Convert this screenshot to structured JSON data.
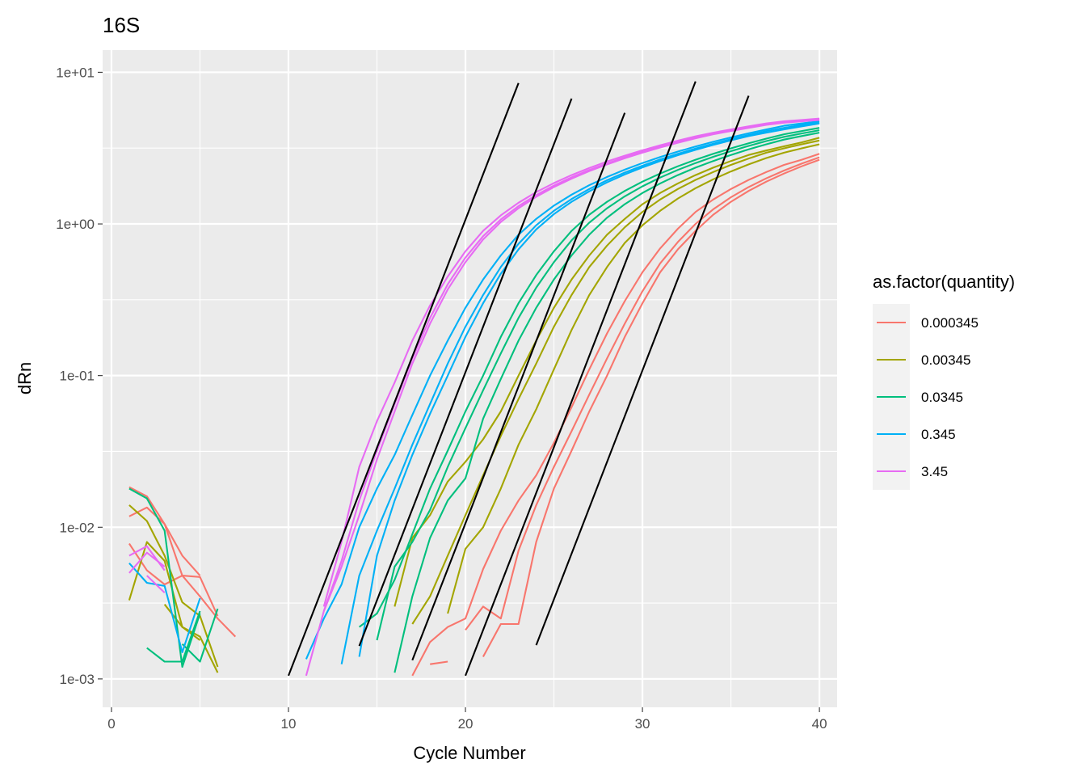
{
  "chart_data": {
    "type": "line",
    "title": "16S",
    "xlabel": "Cycle Number",
    "ylabel": "dRn",
    "xlim": [
      -0.5,
      41
    ],
    "ylim": [
      0.00065,
      14
    ],
    "yscale": "log",
    "xticks": [
      0,
      10,
      20,
      30,
      40
    ],
    "xtick_labels": [
      "0",
      "10",
      "20",
      "30",
      "40"
    ],
    "yticks": [
      0.001,
      0.01,
      0.1,
      1,
      10
    ],
    "ytick_labels": [
      "1e-03",
      "1e-02",
      "1e-01",
      "1e+00",
      "1e+01"
    ],
    "grid": true,
    "legend": {
      "title": "as.factor(quantity)",
      "position": "right",
      "entries": [
        {
          "label": "0.000345",
          "color": "#F8766D"
        },
        {
          "label": "0.00345",
          "color": "#A3A500"
        },
        {
          "label": "0.0345",
          "color": "#00BF7D"
        },
        {
          "label": "0.345",
          "color": "#00B0F6"
        },
        {
          "label": "3.45",
          "color": "#E76BF3"
        }
      ]
    },
    "series": [
      {
        "group": "0.000345",
        "color": "#F8766D",
        "x": [
          1,
          2,
          3,
          4,
          5
        ],
        "y": [
          0.0184,
          0.016,
          0.0105,
          0.0065,
          0.0048
        ]
      },
      {
        "group": "0.000345",
        "color": "#F8766D",
        "x": [
          1,
          2,
          3,
          4,
          5,
          6,
          7
        ],
        "y": [
          0.0118,
          0.0135,
          0.0105,
          0.0048,
          0.0035,
          0.0025,
          0.0019
        ]
      },
      {
        "group": "0.000345",
        "color": "#F8766D",
        "x": [
          1,
          2,
          3,
          4,
          5,
          6
        ],
        "y": [
          0.0078,
          0.0052,
          0.0042,
          0.0048,
          0.0047,
          0.0026
        ]
      },
      {
        "group": "0.000345",
        "color": "#F8766D",
        "x": [
          17,
          18,
          19,
          20,
          21,
          22,
          23,
          24,
          25,
          26,
          27,
          28,
          29,
          30,
          31,
          32,
          33,
          34,
          35,
          36,
          37,
          38,
          39,
          40
        ],
        "y": [
          0.00105,
          0.00175,
          0.0022,
          0.0025,
          0.0053,
          0.0095,
          0.015,
          0.022,
          0.036,
          0.062,
          0.11,
          0.19,
          0.31,
          0.48,
          0.69,
          0.93,
          1.2,
          1.45,
          1.7,
          1.95,
          2.2,
          2.45,
          2.65,
          2.9
        ]
      },
      {
        "group": "0.000345",
        "color": "#F8766D",
        "x": [
          20,
          21,
          22,
          23,
          24,
          25,
          26,
          27,
          28,
          29,
          30,
          31,
          32,
          33,
          34,
          35,
          36,
          37,
          38,
          39,
          40
        ],
        "y": [
          0.0021,
          0.003,
          0.0025,
          0.007,
          0.014,
          0.025,
          0.043,
          0.075,
          0.13,
          0.22,
          0.36,
          0.55,
          0.76,
          1.0,
          1.25,
          1.5,
          1.75,
          2.0,
          2.25,
          2.5,
          2.75
        ]
      },
      {
        "group": "0.000345",
        "color": "#F8766D",
        "x": [
          21,
          22,
          23,
          24,
          25,
          26,
          27,
          28,
          29,
          30,
          31,
          32,
          33,
          34,
          35,
          36,
          37,
          38,
          39,
          40
        ],
        "y": [
          0.0014,
          0.0023,
          0.0023,
          0.008,
          0.018,
          0.032,
          0.058,
          0.1,
          0.18,
          0.3,
          0.48,
          0.68,
          0.9,
          1.15,
          1.4,
          1.65,
          1.9,
          2.15,
          2.4,
          2.65
        ]
      },
      {
        "group": "0.000345",
        "color": "#F8766D",
        "x": [
          18,
          19
        ],
        "y": [
          0.00125,
          0.0013
        ]
      },
      {
        "group": "0.00345",
        "color": "#A3A500",
        "x": [
          1,
          2,
          3,
          4,
          5,
          6
        ],
        "y": [
          0.014,
          0.011,
          0.0065,
          0.0032,
          0.0026,
          0.0012
        ]
      },
      {
        "group": "0.00345",
        "color": "#A3A500",
        "x": [
          1,
          2,
          3,
          4,
          5,
          6
        ],
        "y": [
          0.0033,
          0.008,
          0.006,
          0.0022,
          0.0019,
          0.0011
        ]
      },
      {
        "group": "0.00345",
        "color": "#A3A500",
        "x": [
          3,
          4,
          5
        ],
        "y": [
          0.0031,
          0.0022,
          0.0018
        ]
      },
      {
        "group": "0.00345",
        "color": "#A3A500",
        "x": [
          16,
          17,
          18,
          19,
          20,
          21,
          22,
          23,
          24,
          25,
          26,
          27,
          28,
          29,
          30,
          31,
          32,
          33,
          34,
          35,
          36,
          37,
          38,
          39,
          40
        ],
        "y": [
          0.003,
          0.0085,
          0.012,
          0.02,
          0.027,
          0.038,
          0.058,
          0.1,
          0.17,
          0.28,
          0.43,
          0.62,
          0.85,
          1.08,
          1.35,
          1.6,
          1.85,
          2.1,
          2.35,
          2.6,
          2.85,
          3.05,
          3.25,
          3.45,
          3.7
        ]
      },
      {
        "group": "0.00345",
        "color": "#A3A500",
        "x": [
          17,
          18,
          19,
          20,
          21,
          22,
          23,
          24,
          25,
          26,
          27,
          28,
          29,
          30,
          31,
          32,
          33,
          34,
          35,
          36,
          37,
          38,
          39,
          40
        ],
        "y": [
          0.0023,
          0.0035,
          0.0065,
          0.012,
          0.022,
          0.04,
          0.07,
          0.12,
          0.21,
          0.34,
          0.52,
          0.72,
          0.95,
          1.2,
          1.45,
          1.7,
          1.95,
          2.2,
          2.45,
          2.7,
          2.95,
          3.15,
          3.35,
          3.55
        ]
      },
      {
        "group": "0.00345",
        "color": "#A3A500",
        "x": [
          19,
          20,
          21,
          22,
          23,
          24,
          25,
          26,
          27,
          28,
          29,
          30,
          31,
          32,
          33,
          34,
          35,
          36,
          37,
          38,
          39,
          40
        ],
        "y": [
          0.0027,
          0.0072,
          0.01,
          0.018,
          0.035,
          0.06,
          0.11,
          0.2,
          0.34,
          0.52,
          0.75,
          0.98,
          1.22,
          1.47,
          1.72,
          1.97,
          2.22,
          2.47,
          2.72,
          2.95,
          3.15,
          3.35
        ]
      },
      {
        "group": "0.0345",
        "color": "#00BF7D",
        "x": [
          1,
          2,
          3,
          4,
          5
        ],
        "y": [
          0.018,
          0.0155,
          0.0095,
          0.0012,
          0.0027
        ]
      },
      {
        "group": "0.0345",
        "color": "#00BF7D",
        "x": [
          2,
          3,
          4,
          5
        ],
        "y": [
          0.0016,
          0.0013,
          0.0013,
          0.0028
        ]
      },
      {
        "group": "0.0345",
        "color": "#00BF7D",
        "x": [
          4,
          5,
          6
        ],
        "y": [
          0.0017,
          0.0013,
          0.0029
        ]
      },
      {
        "group": "0.0345",
        "color": "#00BF7D",
        "x": [
          14,
          15,
          16,
          17,
          18,
          19,
          20,
          21,
          22,
          23,
          24,
          25,
          26,
          27,
          28,
          29,
          30,
          31,
          32,
          33,
          34,
          35,
          36,
          37,
          38,
          39,
          40
        ],
        "y": [
          0.0022,
          0.0027,
          0.0045,
          0.009,
          0.018,
          0.032,
          0.058,
          0.1,
          0.18,
          0.3,
          0.46,
          0.66,
          0.9,
          1.15,
          1.4,
          1.65,
          1.9,
          2.15,
          2.4,
          2.65,
          2.9,
          3.15,
          3.4,
          3.65,
          3.9,
          4.1,
          4.3
        ]
      },
      {
        "group": "0.0345",
        "color": "#00BF7D",
        "x": [
          15,
          16,
          17,
          18,
          19,
          20,
          21,
          22,
          23,
          24,
          25,
          26,
          27,
          28,
          29,
          30,
          31,
          32,
          33,
          34,
          35,
          36,
          37,
          38,
          39,
          40
        ],
        "y": [
          0.0018,
          0.0055,
          0.008,
          0.013,
          0.025,
          0.045,
          0.08,
          0.14,
          0.24,
          0.38,
          0.56,
          0.78,
          1.02,
          1.27,
          1.52,
          1.77,
          2.02,
          2.27,
          2.52,
          2.77,
          3.02,
          3.27,
          3.52,
          3.75,
          3.95,
          4.15
        ]
      },
      {
        "group": "0.0345",
        "color": "#00BF7D",
        "x": [
          16,
          17,
          18,
          19,
          20,
          21,
          22,
          23,
          24,
          25,
          26,
          27,
          28,
          29,
          30,
          31,
          32,
          33,
          34,
          35,
          36,
          37,
          38,
          39,
          40
        ],
        "y": [
          0.0011,
          0.0035,
          0.0085,
          0.015,
          0.021,
          0.052,
          0.095,
          0.17,
          0.28,
          0.43,
          0.62,
          0.85,
          1.1,
          1.35,
          1.6,
          1.85,
          2.1,
          2.35,
          2.6,
          2.85,
          3.1,
          3.35,
          3.6,
          3.8,
          4.0
        ]
      },
      {
        "group": "0.345",
        "color": "#00B0F6",
        "x": [
          1,
          2,
          3,
          4,
          5
        ],
        "y": [
          0.0058,
          0.0043,
          0.0041,
          0.0015,
          0.0034
        ]
      },
      {
        "group": "0.345",
        "color": "#00B0F6",
        "x": [
          11,
          12,
          13,
          14,
          15,
          16,
          17,
          18,
          19,
          20,
          21,
          22,
          23,
          24,
          25,
          26,
          27,
          28,
          29,
          30,
          31,
          32,
          33,
          34,
          35,
          36,
          37,
          38,
          39,
          40
        ],
        "y": [
          0.00135,
          0.0025,
          0.0042,
          0.01,
          0.018,
          0.03,
          0.055,
          0.1,
          0.17,
          0.28,
          0.43,
          0.62,
          0.85,
          1.08,
          1.32,
          1.56,
          1.8,
          2.04,
          2.28,
          2.52,
          2.76,
          3.0,
          3.24,
          3.48,
          3.72,
          3.96,
          4.2,
          4.44,
          4.6,
          4.75
        ]
      },
      {
        "group": "0.345",
        "color": "#00B0F6",
        "x": [
          13,
          14,
          15,
          16,
          17,
          18,
          19,
          20,
          21,
          22,
          23,
          24,
          25,
          26,
          27,
          28,
          29,
          30,
          31,
          32,
          33,
          34,
          35,
          36,
          37,
          38,
          39,
          40
        ],
        "y": [
          0.00125,
          0.0048,
          0.0095,
          0.018,
          0.035,
          0.065,
          0.12,
          0.21,
          0.34,
          0.52,
          0.74,
          0.98,
          1.22,
          1.46,
          1.7,
          1.94,
          2.18,
          2.42,
          2.66,
          2.9,
          3.14,
          3.38,
          3.62,
          3.86,
          4.1,
          4.3,
          4.5,
          4.65
        ]
      },
      {
        "group": "0.345",
        "color": "#00B0F6",
        "x": [
          14,
          15,
          16,
          17,
          18,
          19,
          20,
          21,
          22,
          23,
          24,
          25,
          26,
          27,
          28,
          29,
          30,
          31,
          32,
          33,
          34,
          35,
          36,
          37,
          38,
          39,
          40
        ],
        "y": [
          0.0014,
          0.0065,
          0.015,
          0.03,
          0.056,
          0.1,
          0.18,
          0.3,
          0.47,
          0.68,
          0.92,
          1.16,
          1.4,
          1.64,
          1.88,
          2.12,
          2.36,
          2.6,
          2.84,
          3.08,
          3.32,
          3.56,
          3.8,
          4.0,
          4.2,
          4.4,
          4.6
        ]
      },
      {
        "group": "3.45",
        "color": "#E76BF3",
        "x": [
          1,
          2,
          3
        ],
        "y": [
          0.0065,
          0.0075,
          0.0052
        ]
      },
      {
        "group": "3.45",
        "color": "#E76BF3",
        "x": [
          1,
          2,
          3
        ],
        "y": [
          0.005,
          0.0068,
          0.0055
        ]
      },
      {
        "group": "3.45",
        "color": "#E76BF3",
        "x": [
          2,
          3
        ],
        "y": [
          0.0048,
          0.0037
        ]
      },
      {
        "group": "3.45",
        "color": "#E76BF3",
        "x": [
          12,
          13,
          14,
          15,
          16,
          17,
          18,
          19,
          20,
          21,
          22,
          23,
          24,
          25,
          26,
          27,
          28,
          29,
          30,
          31,
          32,
          33,
          34,
          35,
          36,
          37,
          38,
          39,
          40
        ],
        "y": [
          0.003,
          0.008,
          0.025,
          0.05,
          0.09,
          0.17,
          0.29,
          0.45,
          0.66,
          0.9,
          1.14,
          1.38,
          1.62,
          1.86,
          2.1,
          2.34,
          2.58,
          2.82,
          3.06,
          3.3,
          3.54,
          3.78,
          4.0,
          4.2,
          4.4,
          4.6,
          4.75,
          4.85,
          4.95
        ]
      },
      {
        "group": "3.45",
        "color": "#E76BF3",
        "x": [
          11,
          12,
          13,
          14,
          15,
          16,
          17,
          18,
          19,
          20,
          21,
          22,
          23,
          24,
          25,
          26,
          27,
          28,
          29,
          30,
          31,
          32,
          33,
          34,
          35,
          36,
          37,
          38,
          39,
          40
        ],
        "y": [
          0.00105,
          0.0028,
          0.006,
          0.015,
          0.032,
          0.065,
          0.13,
          0.24,
          0.4,
          0.6,
          0.83,
          1.07,
          1.31,
          1.55,
          1.79,
          2.03,
          2.27,
          2.51,
          2.75,
          2.99,
          3.23,
          3.47,
          3.71,
          3.95,
          4.15,
          4.35,
          4.55,
          4.7,
          4.8,
          4.9
        ]
      },
      {
        "group": "3.45",
        "color": "#E76BF3",
        "x": [
          12,
          13,
          14,
          15,
          16,
          17,
          18,
          19,
          20,
          21,
          22,
          23,
          24,
          25,
          26,
          27,
          28,
          29,
          30,
          31,
          32,
          33,
          34,
          35,
          36,
          37,
          38,
          39,
          40
        ],
        "y": [
          0.0028,
          0.0055,
          0.012,
          0.028,
          0.058,
          0.12,
          0.22,
          0.37,
          0.56,
          0.79,
          1.03,
          1.27,
          1.51,
          1.75,
          1.99,
          2.23,
          2.47,
          2.71,
          2.95,
          3.19,
          3.43,
          3.67,
          3.9,
          4.1,
          4.3,
          4.5,
          4.65,
          4.75,
          4.85
        ]
      },
      {
        "group": "fit",
        "color": "#000000",
        "x": [
          10,
          23
        ],
        "y": [
          0.00105,
          8.5
        ]
      },
      {
        "group": "fit",
        "color": "#000000",
        "x": [
          14,
          26
        ],
        "y": [
          0.00165,
          6.7
        ]
      },
      {
        "group": "fit",
        "color": "#000000",
        "x": [
          17,
          29
        ],
        "y": [
          0.00133,
          5.4
        ]
      },
      {
        "group": "fit",
        "color": "#000000",
        "x": [
          20,
          33
        ],
        "y": [
          0.00105,
          8.7
        ]
      },
      {
        "group": "fit",
        "color": "#000000",
        "x": [
          24,
          36
        ],
        "y": [
          0.00167,
          7.0
        ]
      }
    ]
  }
}
